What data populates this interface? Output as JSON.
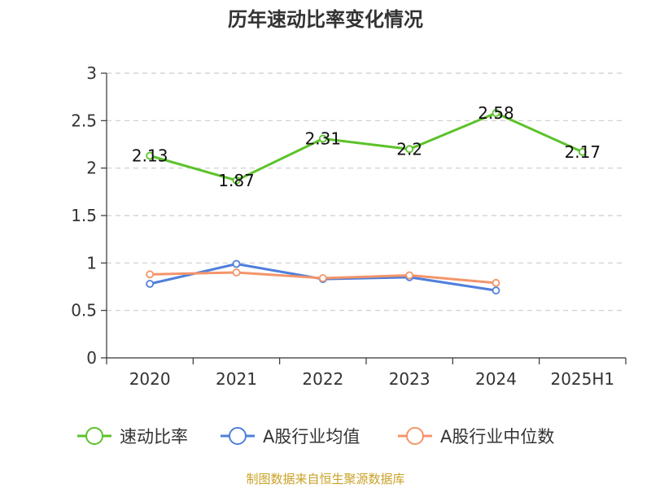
{
  "chart_data": {
    "type": "line",
    "title": "历年速动比率变化情况",
    "categories": [
      "2020",
      "2021",
      "2022",
      "2023",
      "2024",
      "2025H1"
    ],
    "ylim": [
      0,
      3
    ],
    "yticks": [
      "0",
      "0.5",
      "1",
      "1.5",
      "2",
      "2.5",
      "3"
    ],
    "ytick_values": [
      0,
      0.5,
      1,
      1.5,
      2,
      2.5,
      3
    ],
    "grid": true,
    "legend_position": "bottom",
    "series": [
      {
        "name": "速动比率",
        "color": "#5cc22a",
        "values": [
          2.13,
          1.87,
          2.31,
          2.2,
          2.58,
          2.17
        ],
        "labels": [
          "2.13",
          "1.87",
          "2.31",
          "2.2",
          "2.58",
          "2.17"
        ]
      },
      {
        "name": "A股行业均值",
        "color": "#4f7fdc",
        "values": [
          0.78,
          0.99,
          0.83,
          0.85,
          0.71,
          null
        ]
      },
      {
        "name": "A股行业中位数",
        "color": "#f3956a",
        "values": [
          0.88,
          0.9,
          0.84,
          0.87,
          0.79,
          null
        ]
      }
    ]
  },
  "source": "制图数据来自恒生聚源数据库"
}
